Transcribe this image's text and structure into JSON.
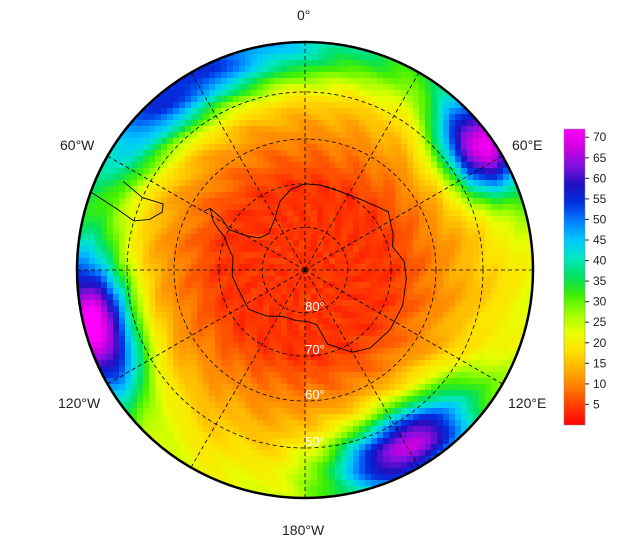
{
  "map": {
    "projection": "south-polar-stereographic",
    "lon_labels": [
      {
        "text": "0°",
        "lon": 0
      },
      {
        "text": "60°E",
        "lon": 60
      },
      {
        "text": "120°E",
        "lon": 120
      },
      {
        "text": "180°W",
        "lon": 180
      },
      {
        "text": "120°W",
        "lon": -120
      },
      {
        "text": "60°W",
        "lon": -60
      }
    ],
    "lat_labels": [
      {
        "text": "80°",
        "lat": -80
      },
      {
        "text": "70°",
        "lat": -70
      },
      {
        "text": "60°",
        "lat": -60
      },
      {
        "text": "50°",
        "lat": -50
      }
    ],
    "graticule": {
      "lat_circles": [
        -80,
        -70,
        -60,
        -50
      ],
      "meridian_step_deg": 30,
      "style": "dashed"
    },
    "boundary_lat": -40
  },
  "colorbar": {
    "ticks": [
      "5",
      "10",
      "15",
      "20",
      "25",
      "30",
      "35",
      "40",
      "45",
      "50",
      "55",
      "60",
      "65",
      "70"
    ],
    "range": [
      0,
      72
    ],
    "colors": [
      "#ff0000",
      "#ff3a00",
      "#ff7a00",
      "#ffb000",
      "#ffe000",
      "#e8ff00",
      "#a0ff00",
      "#40f000",
      "#00e060",
      "#00e8c0",
      "#00c8ff",
      "#0080ff",
      "#0030e0",
      "#2010c0",
      "#8010e0",
      "#d000e0",
      "#ff00ff"
    ]
  },
  "field": {
    "description_hidden": false,
    "high_regions": [
      {
        "lon": -105,
        "lat": -42,
        "value": 62,
        "spread": 20
      },
      {
        "lon": 150,
        "lat": -45,
        "value": 58,
        "spread": 22
      },
      {
        "lon": 55,
        "lat": -43,
        "value": 58,
        "spread": 14
      },
      {
        "lon": -40,
        "lat": -42,
        "value": 38,
        "spread": 30
      },
      {
        "lon": 0,
        "lat": -40,
        "value": 26,
        "spread": 40
      }
    ]
  }
}
